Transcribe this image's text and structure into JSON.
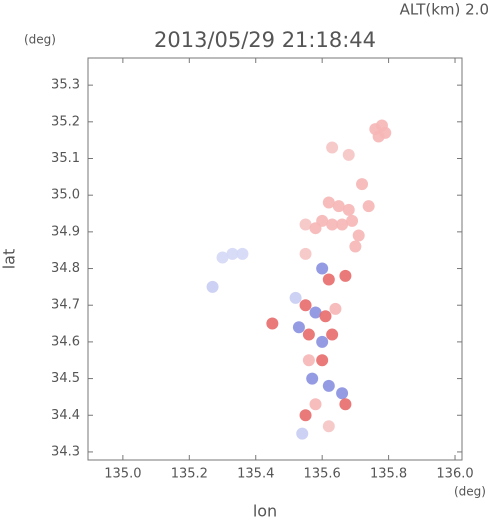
{
  "chart_data": {
    "type": "scatter",
    "title": "2013/05/29 21:18:44",
    "annotation": "ALT(km) 2.0",
    "xlabel": "lon",
    "ylabel": "lat",
    "x_unit": "(deg)",
    "y_unit": "(deg)",
    "xlim": [
      134.895,
      136.021
    ],
    "ylim": [
      34.278,
      35.374
    ],
    "xticks": [
      {
        "value": 135,
        "label": "135.0"
      },
      135.2,
      135.4,
      135.6,
      135.8,
      {
        "value": 136,
        "label": "136.0"
      }
    ],
    "yticks": [
      34.3,
      34.4,
      34.5,
      34.6,
      34.7,
      34.8,
      34.9,
      {
        "value": 35,
        "label": "35.0"
      },
      35.1,
      35.2,
      35.3
    ],
    "x": [
      135.76,
      135.78,
      135.77,
      135.79,
      135.63,
      135.68,
      135.72,
      135.74,
      135.62,
      135.65,
      135.68,
      135.6,
      135.63,
      135.66,
      135.69,
      135.71,
      135.7,
      135.55,
      135.58,
      135.3,
      135.33,
      135.36,
      135.27,
      135.52,
      135.55,
      135.58,
      135.61,
      135.64,
      135.53,
      135.56,
      135.6,
      135.63,
      135.56,
      135.6,
      135.57,
      135.62,
      135.66,
      135.67,
      135.58,
      135.55,
      135.62,
      135.54,
      135.45,
      135.62,
      135.67,
      135.6,
      135.55
    ],
    "y": [
      35.18,
      35.19,
      35.16,
      35.17,
      35.13,
      35.11,
      35.03,
      34.97,
      34.98,
      34.97,
      34.96,
      34.93,
      34.92,
      34.92,
      34.93,
      34.89,
      34.86,
      34.92,
      34.91,
      34.83,
      34.84,
      34.84,
      34.75,
      34.72,
      34.7,
      34.68,
      34.67,
      34.69,
      34.64,
      34.62,
      34.6,
      34.62,
      34.55,
      34.55,
      34.5,
      34.48,
      34.46,
      34.43,
      34.43,
      34.4,
      34.37,
      34.35,
      34.65,
      34.77,
      34.78,
      34.8,
      34.84
    ],
    "colors": [
      "#f6b6b6",
      "#f6b6b6",
      "#f6b6b6",
      "#f6b6b6",
      "#f6c4c4",
      "#f6c4c4",
      "#f6b6b6",
      "#f6b6b6",
      "#f6b6b6",
      "#f6b6b6",
      "#f6b6b6",
      "#f6b6b6",
      "#f6b6b6",
      "#f6b6b6",
      "#f6b6b6",
      "#f6b6b6",
      "#f6b6b6",
      "#f6c4c4",
      "#f6b6b6",
      "#d4d8f6",
      "#d4d8f6",
      "#d4d8f6",
      "#c8ccf2",
      "#c8ccf2",
      "#e86a6a",
      "#8a90e0",
      "#e86a6a",
      "#f6b6b6",
      "#8a90e0",
      "#e86a6a",
      "#8a90e0",
      "#e86a6a",
      "#f6b6b6",
      "#e86a6a",
      "#8a90e0",
      "#8a90e0",
      "#8a90e0",
      "#e86a6a",
      "#f6b6b6",
      "#e86a6a",
      "#f6c4c4",
      "#c8ccf2",
      "#e86a6a",
      "#e86a6a",
      "#e86a6a",
      "#8a90e0",
      "#f6c4c4"
    ]
  }
}
